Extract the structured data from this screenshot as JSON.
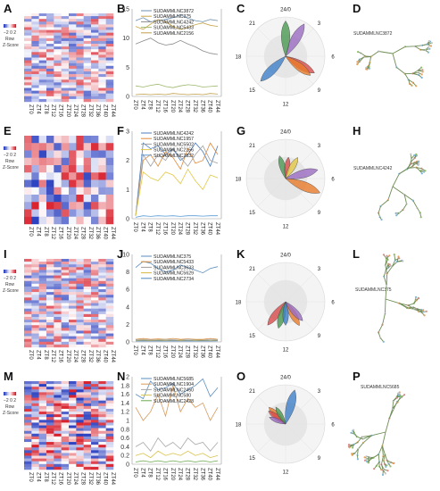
{
  "panel_letters": [
    "A",
    "B",
    "C",
    "D",
    "E",
    "F",
    "G",
    "H",
    "I",
    "J",
    "K",
    "L",
    "M",
    "N",
    "O",
    "P"
  ],
  "heatmap_key": {
    "scale_text": "−2 0 2",
    "row_text": "Row",
    "zscore_text": "Z-Score"
  },
  "time_labels": [
    "ZT0",
    "ZT4",
    "ZT8",
    "ZT12",
    "ZT16",
    "ZT20",
    "ZT24",
    "ZT28",
    "ZT32",
    "ZT36",
    "ZT40",
    "ZT44"
  ],
  "radial_labels": [
    "24/0",
    "3",
    "6",
    "9",
    "12",
    "15",
    "18",
    "21"
  ],
  "network_labels": {
    "D": "SUDAMMLNC3872",
    "H": "SUDAMMLNC4242",
    "L": "SUDAMMLNC375",
    "P": "SUDAMMLNC5685"
  },
  "colors": {
    "heat_blue": "#2a3fbf",
    "heat_red": "#d81f2b",
    "radar_colors": [
      "#3f7fc8",
      "#e87b2b",
      "#9a6cc2",
      "#4a9a52",
      "#d84c4c"
    ]
  },
  "chart_data": [
    {
      "panel": "B",
      "type": "line",
      "x": [
        "ZT0",
        "ZT4",
        "ZT8",
        "ZT12",
        "ZT16",
        "ZT20",
        "ZT24",
        "ZT28",
        "ZT32",
        "ZT36",
        "ZT40",
        "ZT44"
      ],
      "ylim": [
        0,
        15
      ],
      "yticks": [
        0,
        5,
        10,
        15
      ],
      "series": [
        {
          "name": "SUDAMMLNC3872",
          "color": "#6c8fb0",
          "values": [
            13,
            13.5,
            12.8,
            13,
            13.2,
            13.5,
            14,
            13.4,
            13,
            12.8,
            13.2,
            13
          ]
        },
        {
          "name": "SUDAMMLNC375",
          "color": "#c9a64a",
          "values": [
            12,
            11.5,
            12.4,
            13.2,
            12.8,
            12,
            11.5,
            11.8,
            12.3,
            12.6,
            12.2,
            12
          ]
        },
        {
          "name": "SUDAMMLNC4242",
          "color": "#8a8a8a",
          "values": [
            9,
            9.5,
            10,
            9.2,
            8.8,
            9,
            9.6,
            9,
            8.5,
            7.8,
            7.4,
            7.2
          ]
        },
        {
          "name": "SUDAMMLNC5433",
          "color": "#9db86d",
          "values": [
            1.8,
            1.6,
            1.9,
            2.1,
            1.7,
            1.5,
            1.8,
            2,
            1.9,
            1.6,
            1.7,
            1.8
          ]
        },
        {
          "name": "SUDAMMLNC2156",
          "color": "#c2a04b",
          "values": [
            0.3,
            0.4,
            0.3,
            0.4,
            0.3,
            0.5,
            0.4,
            0.3,
            0.4,
            0.3,
            0.5,
            0.4
          ]
        }
      ]
    },
    {
      "panel": "F",
      "type": "line",
      "x": [
        "ZT0",
        "ZT4",
        "ZT8",
        "ZT12",
        "ZT16",
        "ZT20",
        "ZT24",
        "ZT28",
        "ZT32",
        "ZT36",
        "ZT40",
        "ZT44"
      ],
      "ylim": [
        0,
        3
      ],
      "yticks": [
        0,
        1,
        2,
        3
      ],
      "series": [
        {
          "name": "SUDAMMLNC4242",
          "color": "#4e7fbd",
          "values": [
            0.1,
            2.6,
            2.4,
            2.5,
            2.2,
            2.4,
            2.0,
            2.2,
            2.6,
            2.3,
            1.8,
            2.5
          ]
        },
        {
          "name": "SUDAMMLNC1957",
          "color": "#e08a3c",
          "values": [
            0.1,
            2.0,
            2.2,
            1.8,
            2.3,
            2.1,
            1.7,
            2.4,
            1.9,
            2.0,
            2.6,
            2.2
          ]
        },
        {
          "name": "SUDAMMLNC5502",
          "color": "#a0a0a0",
          "values": [
            0.1,
            2.2,
            1.8,
            2.2,
            2.0,
            2.4,
            2.1,
            1.8,
            2.2,
            2.5,
            2.0,
            1.9
          ]
        },
        {
          "name": "SUDAMMLNC2156",
          "color": "#e3c744",
          "values": [
            0.1,
            1.6,
            1.4,
            1.3,
            1.6,
            1.5,
            1.2,
            1.7,
            1.3,
            1.0,
            1.5,
            1.4
          ]
        },
        {
          "name": "SUDAMMLNC2832",
          "color": "#5a9ad4",
          "values": [
            0.05,
            0.1,
            0.08,
            0.1,
            0.09,
            0.1,
            0.08,
            0.1,
            0.1,
            0.09,
            0.1,
            0.1
          ]
        }
      ]
    },
    {
      "panel": "J",
      "type": "line",
      "x": [
        "ZT0",
        "ZT4",
        "ZT8",
        "ZT12",
        "ZT16",
        "ZT20",
        "ZT24",
        "ZT28",
        "ZT32",
        "ZT36",
        "ZT40",
        "ZT44"
      ],
      "ylim": [
        0,
        10
      ],
      "yticks": [
        0,
        2,
        4,
        6,
        8,
        10
      ],
      "series": [
        {
          "name": "SUDAMMLNC375",
          "color": "#5b8ec0",
          "values": [
            8.5,
            9.2,
            9.0,
            8.4,
            8.0,
            8.2,
            8.8,
            8.5,
            8.2,
            7.9,
            8.4,
            8.6
          ]
        },
        {
          "name": "SUDAMMLNC5433",
          "color": "#d88a3a",
          "values": [
            0.3,
            0.4,
            0.3,
            0.35,
            0.3,
            0.4,
            0.3,
            0.35,
            0.3,
            0.3,
            0.4,
            0.3
          ]
        },
        {
          "name": "SUDAMMLNC3633",
          "color": "#9d9d9d",
          "values": [
            0.25,
            0.3,
            0.2,
            0.25,
            0.3,
            0.25,
            0.2,
            0.3,
            0.25,
            0.2,
            0.3,
            0.25
          ]
        },
        {
          "name": "SUDAMMLNC5629",
          "color": "#d6b63e",
          "values": [
            0.15,
            0.2,
            0.15,
            0.2,
            0.18,
            0.15,
            0.2,
            0.15,
            0.2,
            0.18,
            0.15,
            0.2
          ]
        },
        {
          "name": "SUDAMMLNC2734",
          "color": "#4e86c6",
          "values": [
            0.1,
            0.12,
            0.1,
            0.12,
            0.1,
            0.12,
            0.1,
            0.12,
            0.1,
            0.12,
            0.1,
            0.12
          ]
        }
      ]
    },
    {
      "panel": "N",
      "type": "line",
      "x": [
        "ZT0",
        "ZT4",
        "ZT8",
        "ZT12",
        "ZT16",
        "ZT20",
        "ZT24",
        "ZT28",
        "ZT32",
        "ZT36",
        "ZT40",
        "ZT44"
      ],
      "ylim": [
        0,
        2
      ],
      "yticks": [
        0,
        0.2,
        0.4,
        0.6,
        0.8,
        1,
        1.2,
        1.4,
        1.6,
        1.8,
        2
      ],
      "series": [
        {
          "name": "SUDAMMLNC5685",
          "color": "#5b8ec0",
          "values": [
            1.6,
            1.5,
            1.9,
            1.7,
            1.75,
            1.85,
            1.6,
            1.7,
            1.8,
            1.95,
            1.55,
            1.75
          ]
        },
        {
          "name": "SUDAMMLNC1904",
          "color": "#d89a5c",
          "values": [
            1.3,
            1.0,
            1.2,
            1.6,
            1.1,
            1.8,
            1.2,
            1.5,
            1.3,
            1.4,
            1.0,
            1.3
          ]
        },
        {
          "name": "SUDAMMLNC2450",
          "color": "#a8a8a8",
          "values": [
            0.4,
            0.5,
            0.3,
            0.6,
            0.4,
            0.5,
            0.35,
            0.6,
            0.45,
            0.5,
            0.3,
            0.5
          ]
        },
        {
          "name": "SUDAMMLNC580",
          "color": "#d9c24a",
          "values": [
            0.2,
            0.25,
            0.15,
            0.3,
            0.2,
            0.25,
            0.2,
            0.3,
            0.2,
            0.25,
            0.15,
            0.2
          ]
        },
        {
          "name": "SUDAMMLNC2428",
          "color": "#6aa84f",
          "values": [
            0.05,
            0.08,
            0.05,
            0.08,
            0.05,
            0.08,
            0.05,
            0.08,
            0.05,
            0.08,
            0.05,
            0.08
          ]
        }
      ]
    }
  ],
  "radial_petals": {
    "C": [
      {
        "hour": 2,
        "len": 0.95,
        "color": "#9a6cc2"
      },
      {
        "hour": 0,
        "len": 0.9,
        "color": "#4a9a52"
      },
      {
        "hour": 8,
        "len": 0.85,
        "color": "#d84c4c"
      },
      {
        "hour": 8.5,
        "len": 0.8,
        "color": "#e87b2b"
      },
      {
        "hour": 15,
        "len": 0.9,
        "color": "#3f7fc8"
      }
    ],
    "G": [
      {
        "hour": 23,
        "len": 0.6,
        "color": "#4a9a52"
      },
      {
        "hour": 0.5,
        "len": 0.55,
        "color": "#d84c4c"
      },
      {
        "hour": 2,
        "len": 0.62,
        "color": "#e3c744"
      },
      {
        "hour": 5,
        "len": 0.85,
        "color": "#9a6cc2"
      },
      {
        "hour": 7.5,
        "len": 0.95,
        "color": "#e87b2b"
      }
    ],
    "K": [
      {
        "hour": 14.5,
        "len": 0.75,
        "color": "#d84c4c"
      },
      {
        "hour": 13,
        "len": 0.7,
        "color": "#4a9a52"
      },
      {
        "hour": 10,
        "len": 0.7,
        "color": "#e87b2b"
      },
      {
        "hour": 9.2,
        "len": 0.65,
        "color": "#9a6cc2"
      },
      {
        "hour": 12,
        "len": 0.6,
        "color": "#3f7fc8"
      }
    ],
    "O": [
      {
        "hour": 1,
        "len": 0.9,
        "color": "#3f7fc8"
      },
      {
        "hour": 21,
        "len": 0.6,
        "color": "#e87b2b"
      },
      {
        "hour": 20.5,
        "len": 0.55,
        "color": "#d84c4c"
      },
      {
        "hour": 22,
        "len": 0.5,
        "color": "#4a9a52"
      },
      {
        "hour": 19.5,
        "len": 0.45,
        "color": "#9a6cc2"
      }
    ]
  }
}
